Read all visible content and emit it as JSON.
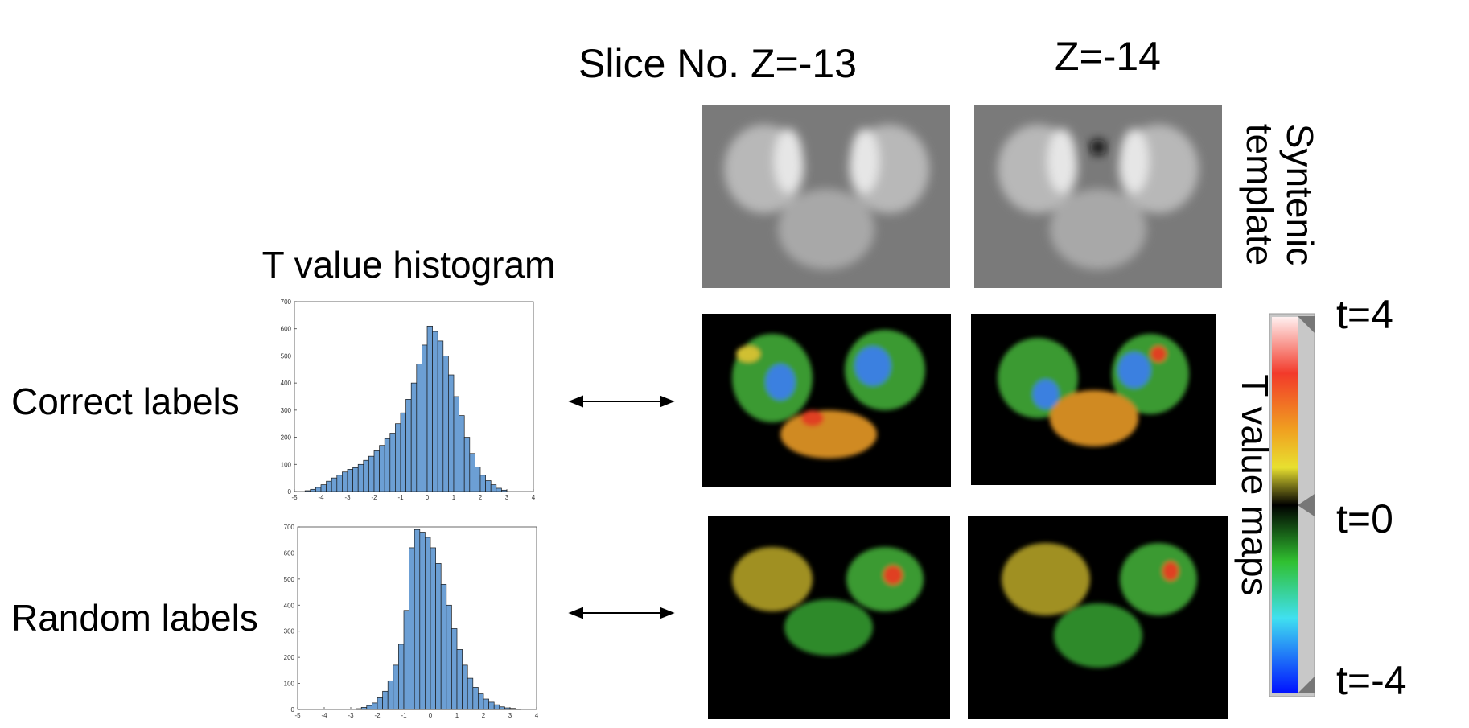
{
  "slice_heading": "Slice No.  Z=-13",
  "slice_heading_2": "Z=-14",
  "histogram_heading": "T value histogram",
  "row_labels": [
    "Correct labels",
    "Random labels"
  ],
  "template_label": [
    "Syntenic",
    "template"
  ],
  "maps_label": "T value maps",
  "colorbar_labels": [
    "t=4",
    "t=0",
    "t=-4"
  ],
  "chart_data": [
    {
      "type": "histogram",
      "color": "#6c9fd4",
      "bins": [
        -4.6,
        -4.4,
        -4.2,
        -4.0,
        -3.8,
        -3.6,
        -3.4,
        -3.2,
        -3.0,
        -2.8,
        -2.6,
        -2.4,
        -2.2,
        -2.0,
        -1.8,
        -1.6,
        -1.4,
        -1.2,
        -1.0,
        -0.8,
        -0.6,
        -0.4,
        -0.2,
        0.0,
        0.2,
        0.4,
        0.6,
        0.8,
        1.0,
        1.2,
        1.4,
        1.6,
        1.8,
        2.0,
        2.2,
        2.4,
        2.6,
        2.8,
        3.0
      ],
      "values": [
        3,
        8,
        15,
        25,
        38,
        50,
        60,
        72,
        82,
        88,
        100,
        115,
        130,
        150,
        170,
        195,
        215,
        250,
        290,
        340,
        400,
        470,
        540,
        610,
        590,
        555,
        500,
        430,
        350,
        280,
        200,
        140,
        90,
        60,
        40,
        25,
        12,
        5
      ],
      "xlim": [
        -5,
        4
      ],
      "xticks": [
        -5,
        -4,
        -3,
        -2,
        -1,
        0,
        1,
        2,
        3,
        4
      ],
      "ylim": [
        0,
        700
      ],
      "yticks": [
        0,
        100,
        200,
        300,
        400,
        500,
        600,
        700
      ]
    },
    {
      "type": "histogram",
      "color": "#6c9fd4",
      "bins": [
        -2.8,
        -2.6,
        -2.4,
        -2.2,
        -2.0,
        -1.8,
        -1.6,
        -1.4,
        -1.2,
        -1.0,
        -0.8,
        -0.6,
        -0.4,
        -0.2,
        0.0,
        0.2,
        0.4,
        0.6,
        0.8,
        1.0,
        1.2,
        1.4,
        1.6,
        1.8,
        2.0,
        2.2,
        2.4,
        2.6,
        2.8,
        3.0,
        3.2,
        3.4
      ],
      "values": [
        3,
        8,
        15,
        25,
        45,
        70,
        110,
        170,
        250,
        380,
        620,
        690,
        680,
        660,
        620,
        560,
        480,
        400,
        310,
        230,
        170,
        120,
        85,
        60,
        40,
        28,
        18,
        10,
        6,
        4,
        2
      ],
      "xlim": [
        -5,
        4
      ],
      "xticks": [
        -5,
        -4,
        -3,
        -2,
        -1,
        0,
        1,
        2,
        3,
        4
      ],
      "ylim": [
        0,
        700
      ],
      "yticks": [
        0,
        100,
        200,
        300,
        400,
        500,
        600,
        700
      ]
    }
  ]
}
